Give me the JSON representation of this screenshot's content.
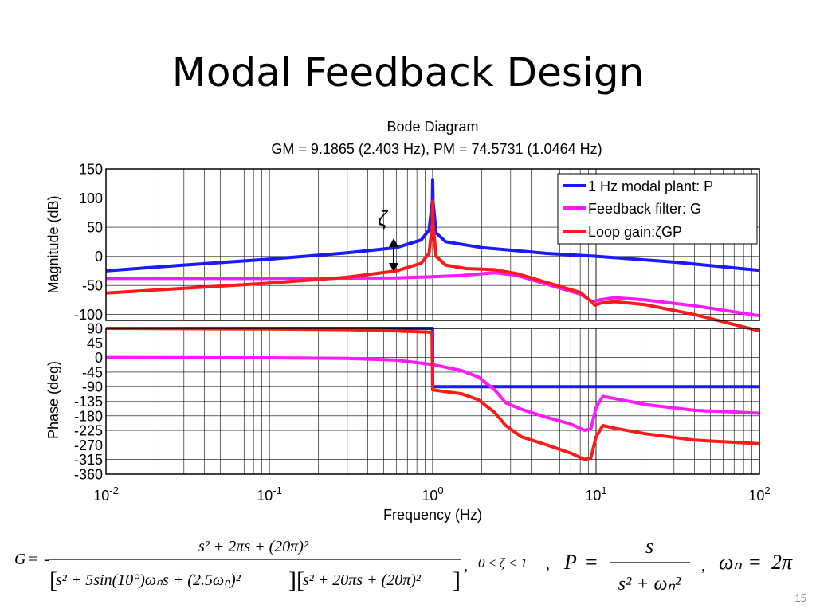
{
  "slide": {
    "title": "Modal Feedback Design",
    "page_number": "15"
  },
  "chart_data": {
    "type": "line",
    "title": "Bode Diagram",
    "subtitle": "GM = 9.1865 (2.403 Hz), PM = 74.5731 (1.0464 Hz)",
    "xlabel": "Frequency (Hz)",
    "x_scale": "log",
    "x_ticks": [
      {
        "base": "10",
        "exp": "-2"
      },
      {
        "base": "10",
        "exp": "-1"
      },
      {
        "base": "10",
        "exp": "0"
      },
      {
        "base": "10",
        "exp": "1"
      },
      {
        "base": "10",
        "exp": "2"
      }
    ],
    "xlim": [
      0.01,
      100
    ],
    "grid": true,
    "magnitude": {
      "ylabel": "Magnitude (dB)",
      "ylim": [
        -110,
        150
      ],
      "yticks": [
        "150",
        "100",
        "50",
        "0",
        "-50",
        "-100"
      ],
      "annotation": "ζ",
      "legend": {
        "placement": "top-right",
        "entries": [
          "1 Hz modal plant: P",
          "Feedback filter: G",
          "Loop gain:ζGP"
        ]
      },
      "series": [
        {
          "name": "1 Hz modal plant: P",
          "color": "#1a1aff",
          "points": [
            [
              0.01,
              -25
            ],
            [
              0.03,
              -15
            ],
            [
              0.1,
              -5
            ],
            [
              0.3,
              6
            ],
            [
              0.6,
              15
            ],
            [
              0.85,
              28
            ],
            [
              0.95,
              45
            ],
            [
              0.995,
              95
            ],
            [
              1.0,
              132
            ],
            [
              1.005,
              95
            ],
            [
              1.05,
              40
            ],
            [
              1.2,
              25
            ],
            [
              2,
              15
            ],
            [
              5,
              5
            ],
            [
              10,
              0
            ],
            [
              30,
              -10
            ],
            [
              100,
              -24
            ]
          ]
        },
        {
          "name": "Feedback filter: G",
          "color": "#ff1aff",
          "points": [
            [
              0.01,
              -38
            ],
            [
              0.1,
              -38
            ],
            [
              0.6,
              -37
            ],
            [
              1.0,
              -35
            ],
            [
              1.5,
              -33
            ],
            [
              2.4,
              -28
            ],
            [
              3.3,
              -33
            ],
            [
              5,
              -48
            ],
            [
              8,
              -65
            ],
            [
              9.5,
              -78
            ],
            [
              10.5,
              -75
            ],
            [
              13,
              -71
            ],
            [
              20,
              -75
            ],
            [
              40,
              -85
            ],
            [
              100,
              -102
            ]
          ]
        },
        {
          "name": "Loop gain:ζGP",
          "color": "#ff1a1a",
          "points": [
            [
              0.01,
              -63
            ],
            [
              0.03,
              -55
            ],
            [
              0.1,
              -46
            ],
            [
              0.3,
              -36
            ],
            [
              0.6,
              -25
            ],
            [
              0.85,
              -12
            ],
            [
              0.95,
              5
            ],
            [
              0.995,
              55
            ],
            [
              1.0,
              95
            ],
            [
              1.005,
              55
            ],
            [
              1.05,
              0
            ],
            [
              1.2,
              -15
            ],
            [
              1.6,
              -21
            ],
            [
              2.4,
              -23
            ],
            [
              3.3,
              -30
            ],
            [
              5,
              -45
            ],
            [
              8,
              -62
            ],
            [
              9.4,
              -78
            ],
            [
              9.8,
              -84
            ],
            [
              10.8,
              -80
            ],
            [
              13,
              -78
            ],
            [
              20,
              -83
            ],
            [
              40,
              -100
            ],
            [
              100,
              -128
            ]
          ]
        }
      ]
    },
    "phase": {
      "ylabel": "Phase (deg)",
      "ylim": [
        -360,
        90
      ],
      "yticks": [
        "90",
        "45",
        "0",
        "-45",
        "-90",
        "-135",
        "-180",
        "-225",
        "-270",
        "-315",
        "-360"
      ],
      "series": [
        {
          "name": "1 Hz modal plant: P",
          "color": "#1a1aff",
          "points": [
            [
              0.01,
              90
            ],
            [
              0.999,
              90
            ],
            [
              1.0,
              -90
            ],
            [
              100,
              -90
            ]
          ]
        },
        {
          "name": "Feedback filter: G",
          "color": "#ff1aff",
          "points": [
            [
              0.01,
              0
            ],
            [
              0.1,
              -1
            ],
            [
              0.3,
              -3
            ],
            [
              0.6,
              -8
            ],
            [
              1.0,
              -22
            ],
            [
              1.5,
              -40
            ],
            [
              1.9,
              -60
            ],
            [
              2.4,
              -100
            ],
            [
              2.8,
              -140
            ],
            [
              3.5,
              -160
            ],
            [
              5,
              -185
            ],
            [
              7,
              -205
            ],
            [
              8.5,
              -225
            ],
            [
              9.3,
              -220
            ],
            [
              10,
              -155
            ],
            [
              11,
              -120
            ],
            [
              13,
              -127
            ],
            [
              20,
              -145
            ],
            [
              40,
              -163
            ],
            [
              100,
              -172
            ]
          ]
        },
        {
          "name": "Loop gain:ζGP",
          "color": "#ff1a1a",
          "points": [
            [
              0.01,
              90
            ],
            [
              0.1,
              88
            ],
            [
              0.3,
              86
            ],
            [
              0.6,
              82
            ],
            [
              0.99,
              78
            ],
            [
              1.0,
              -100
            ],
            [
              1.5,
              -112
            ],
            [
              1.9,
              -130
            ],
            [
              2.4,
              -170
            ],
            [
              2.8,
              -210
            ],
            [
              3.5,
              -245
            ],
            [
              5,
              -270
            ],
            [
              7,
              -295
            ],
            [
              8.5,
              -315
            ],
            [
              9.3,
              -310
            ],
            [
              10,
              -245
            ],
            [
              11,
              -210
            ],
            [
              13,
              -218
            ],
            [
              20,
              -235
            ],
            [
              40,
              -255
            ],
            [
              100,
              -266
            ]
          ]
        }
      ]
    }
  },
  "formulas": {
    "G_lhs": "G",
    "eq": "=",
    "minus": "-",
    "G_numerator": "s² + 2πs + (20π)²",
    "G_denominator_1": "s² + 5sin(10°)ωₙs + (2.5ωₙ)²",
    "G_denominator_2": "s² + 20πs + (20π)²",
    "comma1": ",",
    "zeta_range": "0 ≤ ζ < 1",
    "comma2": ",",
    "P_lhs": "P",
    "P_numerator": "s",
    "P_denominator": "s² + ωₙ²",
    "comma3": ",",
    "wn_lhs": "ωₙ",
    "wn_rhs": "2π"
  }
}
